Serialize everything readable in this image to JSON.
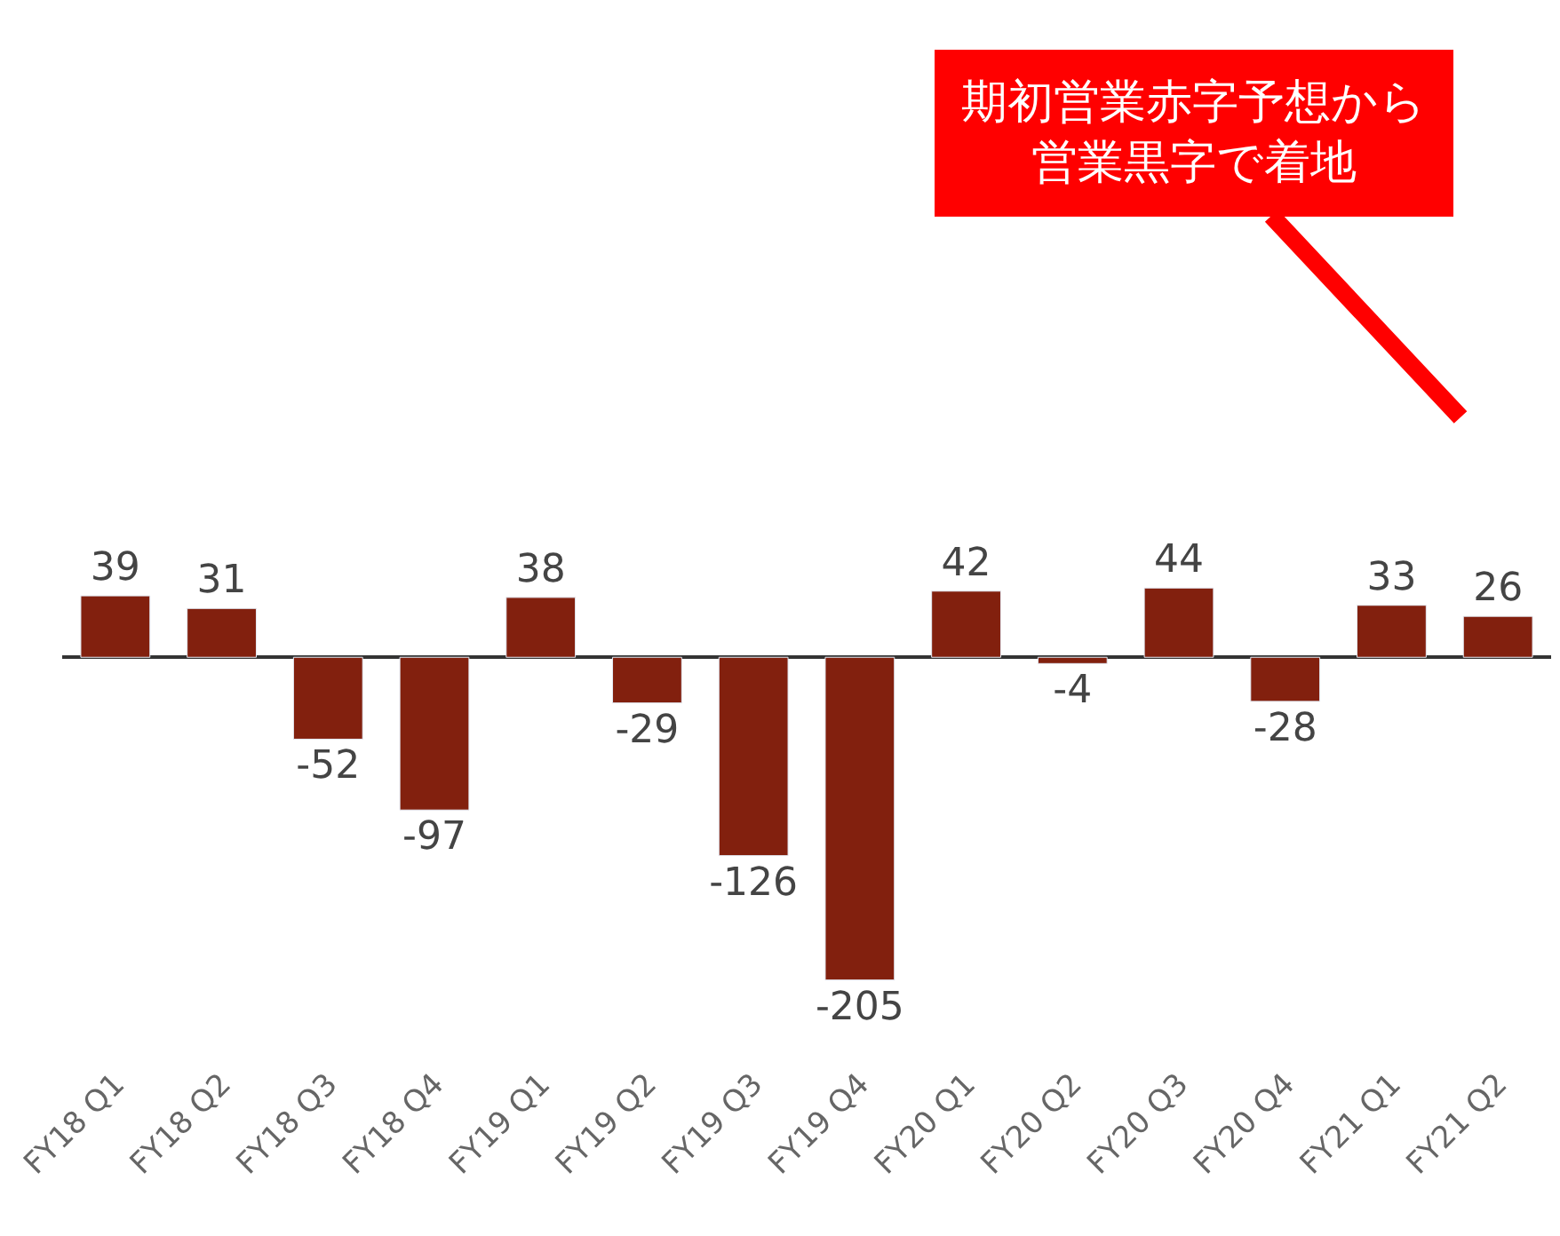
{
  "chart_data": {
    "type": "bar",
    "categories": [
      "FY18 Q1",
      "FY18 Q2",
      "FY18 Q3",
      "FY18 Q4",
      "FY19 Q1",
      "FY19 Q2",
      "FY19 Q3",
      "FY19 Q4",
      "FY20 Q1",
      "FY20 Q2",
      "FY20 Q3",
      "FY20 Q4",
      "FY21 Q1",
      "FY21 Q2"
    ],
    "values": [
      39,
      31,
      -52,
      -97,
      38,
      -29,
      -126,
      -205,
      42,
      -4,
      44,
      -28,
      33,
      26
    ],
    "color": "#82200e",
    "data_labels": true,
    "legend": false,
    "annotations": [
      "期初営業赤字予想から営業黒字で着地"
    ]
  }
}
